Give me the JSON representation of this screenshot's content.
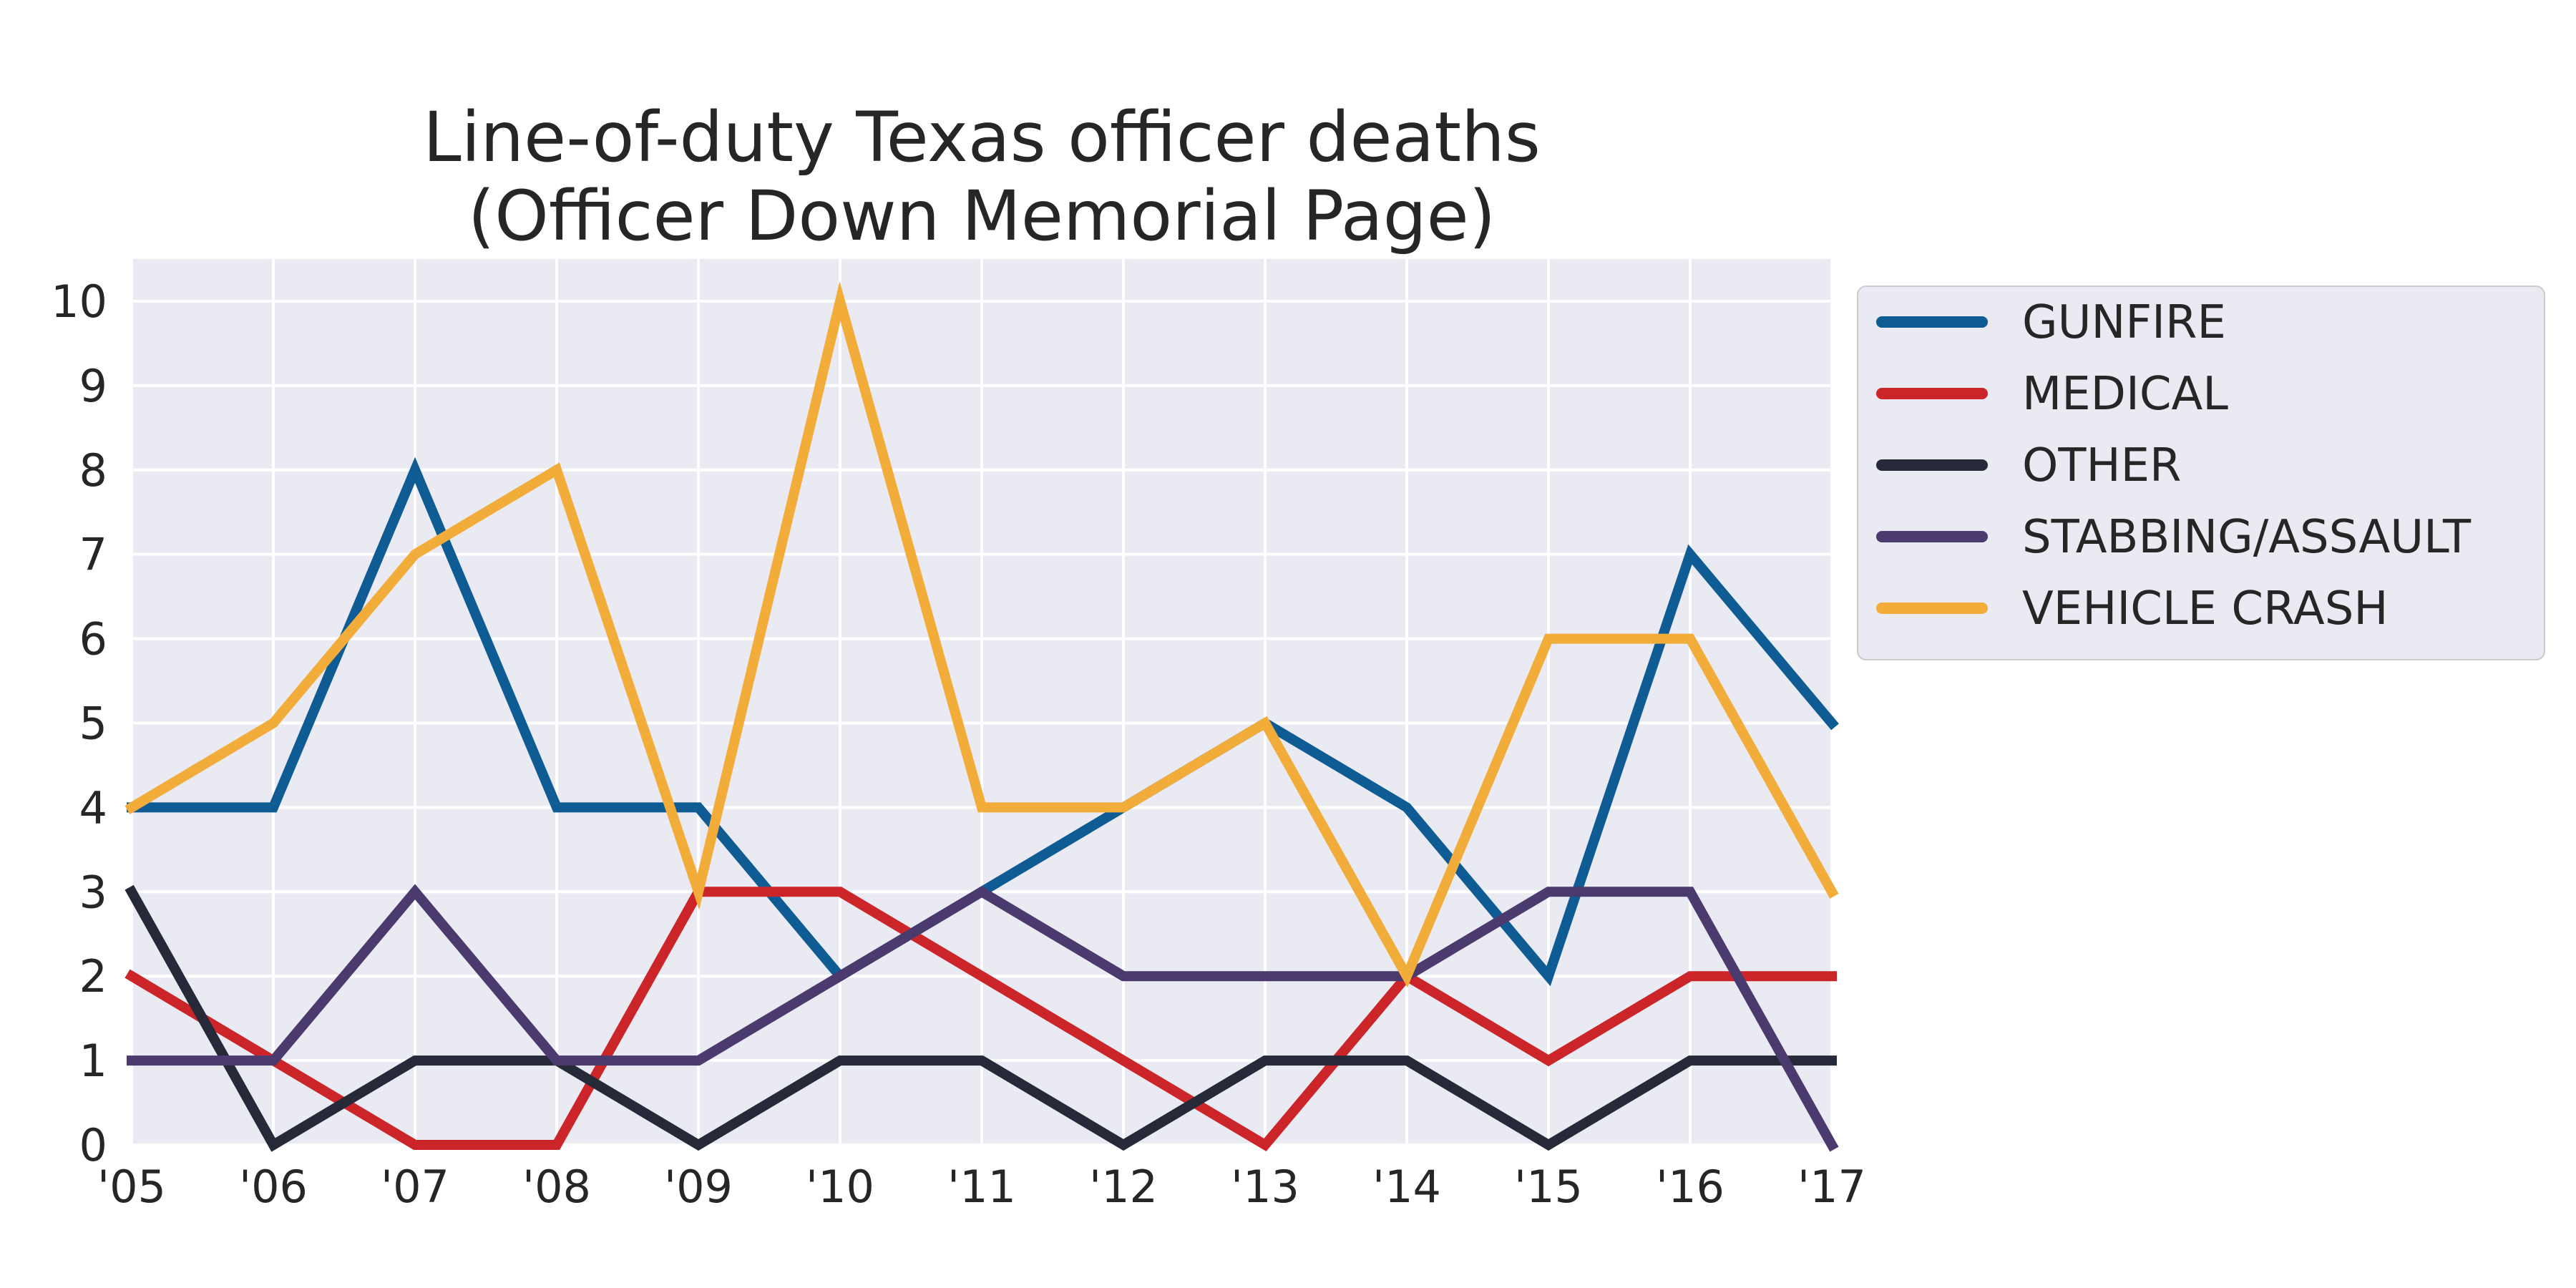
{
  "chart_data": {
    "type": "line",
    "title": "Line-of-duty Texas officer deaths",
    "subtitle": "(Officer Down Memorial Page)",
    "xlabel": "",
    "ylabel": "",
    "categories": [
      "'05",
      "'06",
      "'07",
      "'08",
      "'09",
      "'10",
      "'11",
      "'12",
      "'13",
      "'14",
      "'15",
      "'16",
      "'17"
    ],
    "y_ticks": [
      "0",
      "1",
      "2",
      "3",
      "4",
      "5",
      "6",
      "7",
      "8",
      "9",
      "10"
    ],
    "ylim": [
      0,
      10.5
    ],
    "grid": true,
    "legend_position": "outside-right-top",
    "series": [
      {
        "name": "GUNFIRE",
        "color": "#0f5c94",
        "values": [
          4,
          4,
          8,
          4,
          4,
          2,
          3,
          4,
          5,
          4,
          2,
          7,
          5
        ]
      },
      {
        "name": "MEDICAL",
        "color": "#cc2529",
        "values": [
          2,
          1,
          0,
          0,
          3,
          3,
          2,
          1,
          0,
          2,
          1,
          2,
          2
        ]
      },
      {
        "name": "OTHER",
        "color": "#262a38",
        "values": [
          3,
          0,
          1,
          1,
          0,
          1,
          1,
          0,
          1,
          1,
          0,
          1,
          1
        ]
      },
      {
        "name": "STABBING/ASSAULT",
        "color": "#4b3a6e",
        "values": [
          1,
          1,
          3,
          1,
          1,
          2,
          3,
          2,
          2,
          2,
          3,
          3,
          0
        ]
      },
      {
        "name": "VEHICLE CRASH",
        "color": "#f2ac3a",
        "values": [
          4,
          5,
          7,
          8,
          3,
          10,
          4,
          4,
          5,
          2,
          6,
          6,
          3
        ]
      }
    ]
  }
}
